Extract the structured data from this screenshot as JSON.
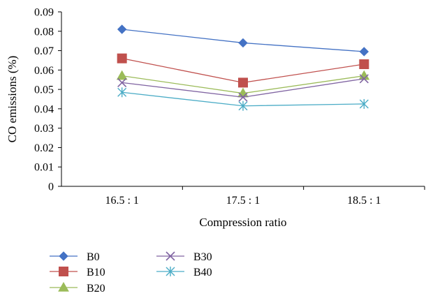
{
  "chart_data": {
    "type": "line",
    "categories": [
      "16.5 : 1",
      "17.5 : 1",
      "18.5 : 1"
    ],
    "xlabel": "Compression ratio",
    "ylabel": "CO emissions (%)",
    "ylim": [
      0,
      0.09
    ],
    "yticks": [
      "0",
      "0.01",
      "0.02",
      "0.03",
      "0.04",
      "0.05",
      "0.06",
      "0.07",
      "0.08",
      "0.09"
    ],
    "grid": false,
    "legend_position": "bottom-left",
    "series": [
      {
        "name": "B0",
        "values": [
          0.081,
          0.074,
          0.0695
        ],
        "color": "#4472C4",
        "marker": "diamond"
      },
      {
        "name": "B10",
        "values": [
          0.066,
          0.0535,
          0.063
        ],
        "color": "#C0504D",
        "marker": "square"
      },
      {
        "name": "B20",
        "values": [
          0.057,
          0.048,
          0.057
        ],
        "color": "#9BBB59",
        "marker": "triangle"
      },
      {
        "name": "B30",
        "values": [
          0.0535,
          0.046,
          0.0555
        ],
        "color": "#8064A2",
        "marker": "x"
      },
      {
        "name": "B40",
        "values": [
          0.0485,
          0.0415,
          0.0425
        ],
        "color": "#4BACC6",
        "marker": "star"
      }
    ]
  }
}
